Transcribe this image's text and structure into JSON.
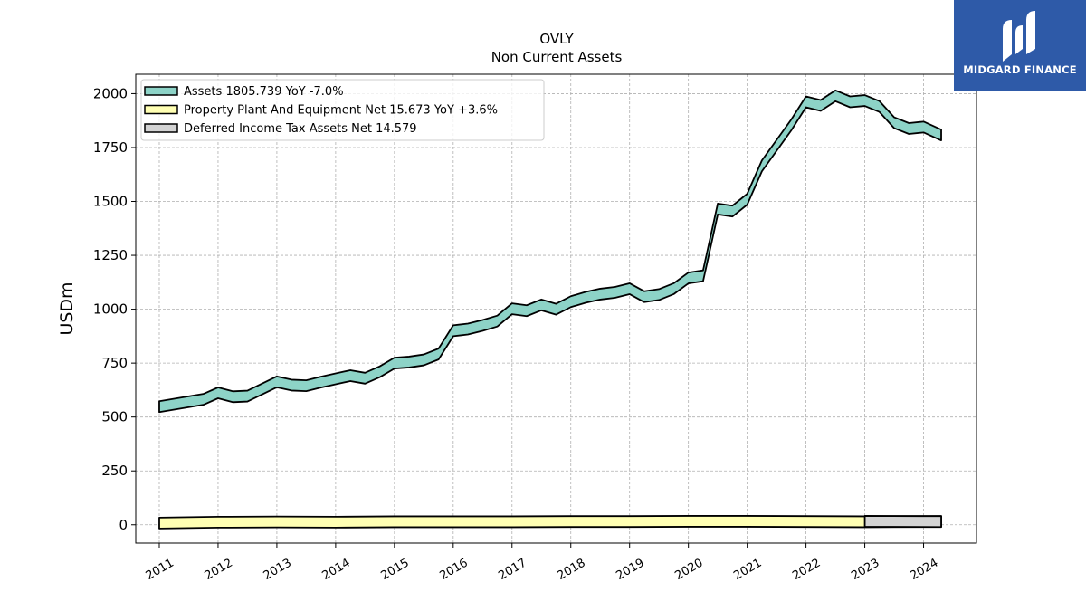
{
  "chart_data": {
    "type": "area",
    "title": "OVLY",
    "subtitle": "Non Current  Assets",
    "ylabel": "USDm",
    "xlabel": "",
    "xlim": [
      2010.6,
      2024.9
    ],
    "ylim": [
      -85,
      2090
    ],
    "yticks": [
      0,
      250,
      500,
      750,
      1000,
      1250,
      1500,
      1750,
      2000
    ],
    "xticks": [
      2011,
      2012,
      2013,
      2014,
      2015,
      2016,
      2017,
      2018,
      2019,
      2020,
      2021,
      2022,
      2023,
      2024
    ],
    "grid": true,
    "legend_position": "top-left",
    "series": [
      {
        "name": "Assets  1805.739 YoY -7.0%",
        "color": "#8dd3c7",
        "x": [
          2011.0,
          2011.75,
          2012.0,
          2012.25,
          2012.5,
          2013.0,
          2013.25,
          2013.5,
          2013.75,
          2014.0,
          2014.25,
          2014.5,
          2014.75,
          2015.0,
          2015.25,
          2015.5,
          2015.75,
          2016.0,
          2016.25,
          2016.5,
          2016.75,
          2017.0,
          2017.25,
          2017.5,
          2017.75,
          2018.0,
          2018.25,
          2018.5,
          2018.75,
          2019.0,
          2019.25,
          2019.5,
          2019.75,
          2020.0,
          2020.25,
          2020.5,
          2020.75,
          2021.0,
          2021.25,
          2021.5,
          2021.75,
          2022.0,
          2022.25,
          2022.5,
          2022.75,
          2023.0,
          2023.25,
          2023.5,
          2023.75,
          2024.0,
          2024.3
        ],
        "values": [
          548,
          582,
          612,
          594,
          597,
          663,
          648,
          645,
          662,
          677,
          692,
          680,
          710,
          750,
          755,
          765,
          792,
          900,
          908,
          925,
          945,
          1002,
          993,
          1020,
          1000,
          1035,
          1055,
          1070,
          1078,
          1095,
          1058,
          1068,
          1095,
          1145,
          1155,
          1465,
          1455,
          1510,
          1665,
          1760,
          1855,
          1962,
          1945,
          1990,
          1962,
          1968,
          1940,
          1865,
          1838,
          1845,
          1808
        ]
      },
      {
        "name": "Property Plant And Equipment Net  15.673 YoY +3.6%",
        "color": "#ffffb3",
        "x": [
          2011.0,
          2012.0,
          2013.0,
          2014.0,
          2015.0,
          2016.0,
          2017.0,
          2018.0,
          2019.0,
          2020.0,
          2021.0,
          2022.0,
          2023.0,
          2024.3
        ],
        "values": [
          8,
          12,
          13,
          12,
          14,
          14,
          14,
          15,
          15,
          16,
          16,
          15,
          14,
          15.7
        ]
      },
      {
        "name": "Deferred Income Tax Assets Net  14.579",
        "color": "#d3d3d3",
        "x": [
          2011.0,
          2012.0,
          2013.0,
          2014.0,
          2015.0,
          2016.0,
          2017.0,
          2018.0,
          2019.0,
          2020.0,
          2021.0,
          2022.0,
          2023.0,
          2024.3
        ],
        "values": [
          16,
          16,
          16,
          15,
          15,
          15,
          15,
          15,
          15,
          15,
          16,
          16,
          16,
          14.6
        ],
        "visible_from": 2023.0
      }
    ]
  },
  "logo": {
    "text": "MIDGARD FINANCE"
  }
}
